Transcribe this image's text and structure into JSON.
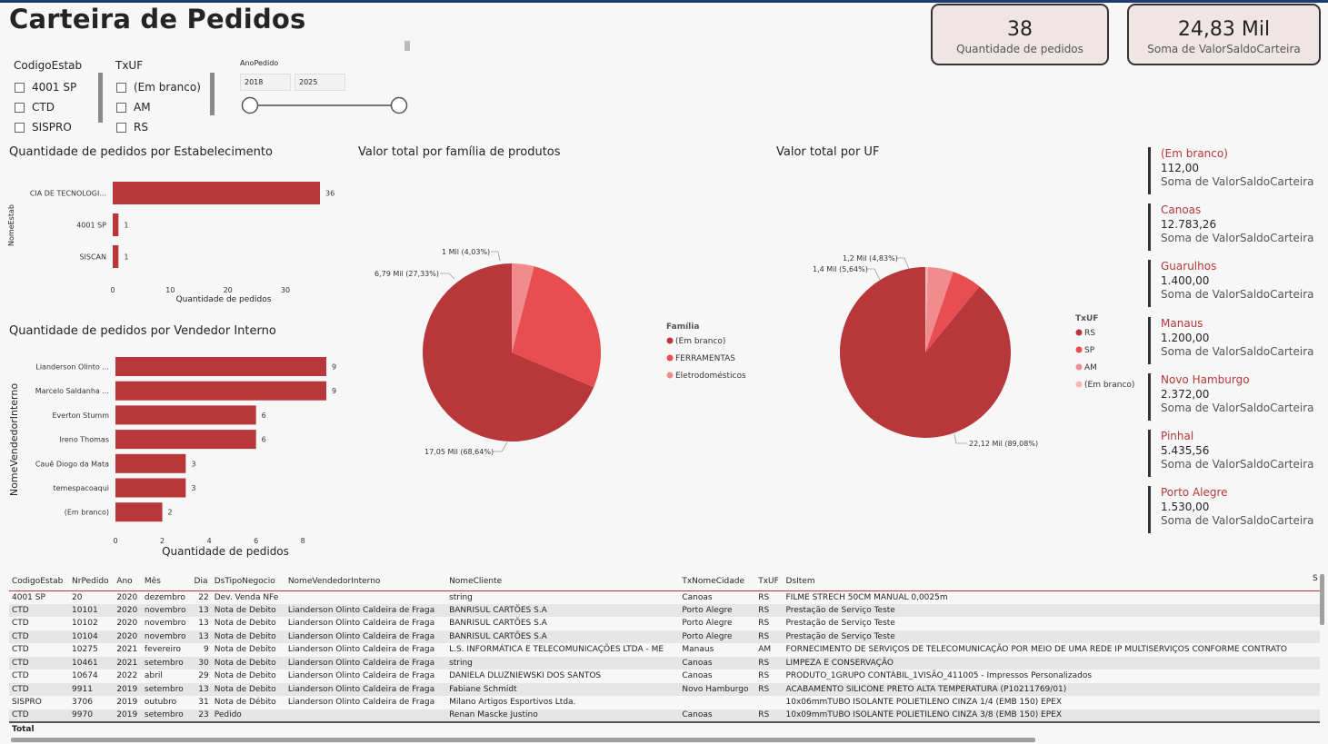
{
  "header": {
    "title": "Carteira de Pedidos"
  },
  "cards": [
    {
      "value": "38",
      "label": "Quantidade de pedidos"
    },
    {
      "value": "24,83 Mil",
      "label": "Soma de ValorSaldoCarteira"
    }
  ],
  "slicers": {
    "codigo": {
      "title": "CodigoEstab",
      "items": [
        "4001 SP",
        "CTD",
        "SISPRO"
      ]
    },
    "uf": {
      "title": "TxUF",
      "items": [
        "(Em branco)",
        "AM",
        "RS"
      ]
    },
    "ano": {
      "title": "AnoPedido",
      "from": "2018",
      "to": "2025"
    }
  },
  "colors": {
    "primary": "#b7373b",
    "secondary": "#e84e50",
    "tertiary": "#f08c8e",
    "quaternary": "#f5b8b9"
  },
  "chart_data": [
    {
      "type": "bar",
      "orientation": "horizontal",
      "title": "Quantidade de pedidos por Estabelecimento",
      "xlabel": "Quantidade de pedidos",
      "ylabel": "NomeEstab",
      "categories": [
        "CIA DE TECNOLOGI...",
        "4001 SP",
        "SISCAN"
      ],
      "values": [
        36,
        1,
        1
      ],
      "xticks": [
        "0",
        "10",
        "20",
        "30"
      ],
      "xlim": [
        0,
        36
      ]
    },
    {
      "type": "bar",
      "orientation": "horizontal",
      "title": "Quantidade de pedidos por Vendedor Interno",
      "xlabel": "Quantidade de pedidos",
      "ylabel": "NomeVendedorInterno",
      "categories": [
        "Lianderson Olinto ...",
        "Marcelo Saldanha ...",
        "Everton Stumm",
        "Ireno Thomas",
        "Cauê Diogo da Mata",
        "temespacoaqui",
        "(Em branco)"
      ],
      "values": [
        9,
        9,
        6,
        6,
        3,
        3,
        2
      ],
      "xticks": [
        "0",
        "2",
        "4",
        "6",
        "8"
      ],
      "xlim": [
        0,
        9
      ]
    },
    {
      "type": "pie",
      "title": "Valor total por família de produtos",
      "legend_title": "Família",
      "slices": [
        {
          "name": "(Em branco)",
          "value": 17.05,
          "label": "17,05 Mil (68,64%)"
        },
        {
          "name": "FERRAMENTAS",
          "value": 6.79,
          "label": "6,79 Mil (27,33%)"
        },
        {
          "name": "Eletrodomésticos",
          "value": 1,
          "label": "1 Mil (4,03%)"
        }
      ]
    },
    {
      "type": "pie",
      "title": "Valor total por UF",
      "legend_title": "TxUF",
      "slices": [
        {
          "name": "RS",
          "value": 22.12,
          "label": "22,12 Mil (89,08%)"
        },
        {
          "name": "SP",
          "value": 1.4,
          "label": "1,4 Mil (5,64%)"
        },
        {
          "name": "AM",
          "value": 1.2,
          "label": "1,2 Mil (4,83%)"
        },
        {
          "name": "(Em branco)",
          "value": 0.112,
          "label": ""
        }
      ]
    }
  ],
  "multirow": [
    {
      "cidade": "(Em branco)",
      "valor": "112,00",
      "label": "Soma de ValorSaldoCarteira"
    },
    {
      "cidade": "Canoas",
      "valor": "12.783,26",
      "label": "Soma de ValorSaldoCarteira"
    },
    {
      "cidade": "Guarulhos",
      "valor": "1.400,00",
      "label": "Soma de ValorSaldoCarteira"
    },
    {
      "cidade": "Manaus",
      "valor": "1.200,00",
      "label": "Soma de ValorSaldoCarteira"
    },
    {
      "cidade": "Novo Hamburgo",
      "valor": "2.372,00",
      "label": "Soma de ValorSaldoCarteira"
    },
    {
      "cidade": "Pinhal",
      "valor": "5.435,56",
      "label": "Soma de ValorSaldoCarteira"
    },
    {
      "cidade": "Porto Alegre",
      "valor": "1.530,00",
      "label": "Soma de ValorSaldoCarteira"
    }
  ],
  "table": {
    "columns": [
      "CodigoEstab",
      "NrPedido",
      "Ano",
      "Mês",
      "Dia",
      "DsTipoNegocio",
      "NomeVendedorInterno",
      "NomeCliente",
      "TxNomeCidade",
      "TxUF",
      "DsItem"
    ],
    "rows": [
      [
        "4001 SP",
        "20",
        "2020",
        "dezembro",
        "22",
        "Dev. Venda NFe",
        "",
        "string",
        "Canoas",
        "RS",
        "FILME STRECH 50CM MANUAL 0,0025m"
      ],
      [
        "CTD",
        "10101",
        "2020",
        "novembro",
        "13",
        "Nota de Debito",
        "Lianderson Olinto Caldeira de Fraga",
        "BANRISUL CARTÕES S.A",
        "Porto Alegre",
        "RS",
        "Prestação de Serviço Teste"
      ],
      [
        "CTD",
        "10102",
        "2020",
        "novembro",
        "13",
        "Nota de Debito",
        "Lianderson Olinto Caldeira de Fraga",
        "BANRISUL CARTÕES S.A",
        "Porto Alegre",
        "RS",
        "Prestação de Serviço Teste"
      ],
      [
        "CTD",
        "10104",
        "2020",
        "novembro",
        "13",
        "Nota de Debito",
        "Lianderson Olinto Caldeira de Fraga",
        "BANRISUL CARTÕES S.A",
        "Porto Alegre",
        "RS",
        "Prestação de Serviço Teste"
      ],
      [
        "CTD",
        "10275",
        "2021",
        "fevereiro",
        "9",
        "Nota de Debito",
        "Lianderson Olinto Caldeira de Fraga",
        "L.S. INFORMÁTICA E TELECOMUNICAÇÕES LTDA - ME",
        "Manaus",
        "AM",
        "FORNECIMENTO DE SERVIÇOS DE TELECOMUNICAÇÃO POR MEIO DE UMA REDE IP MULTISERVIÇOS CONFORME CONTRATO"
      ],
      [
        "CTD",
        "10461",
        "2021",
        "setembro",
        "30",
        "Nota de Debito",
        "Lianderson Olinto Caldeira de Fraga",
        "string",
        "Canoas",
        "RS",
        "LIMPEZA E CONSERVAÇÃO"
      ],
      [
        "CTD",
        "10674",
        "2022",
        "abril",
        "29",
        "Nota de Debito",
        "Lianderson Olinto Caldeira de Fraga",
        "DANIELA DLUZNIEWSKI DOS SANTOS",
        "Canoas",
        "RS",
        "PRODUTO_1GRUPO CONTÁBIL_1VISÃO_411005 - Impressos Personalizados"
      ],
      [
        "CTD",
        "9911",
        "2019",
        "setembro",
        "13",
        "Nota de Debito",
        "Lianderson Olinto Caldeira de Fraga",
        "Fabiane Schmidt",
        "Novo Hamburgo",
        "RS",
        "ACABAMENTO SILICONE PRETO ALTA TEMPERATURA (P10211769/01)"
      ],
      [
        "SISPRO",
        "3706",
        "2019",
        "outubro",
        "31",
        "Nota de Débito",
        "Lianderson Olinto Caldeira de Fraga",
        "Milano Artigos Esportivos Ltda.",
        "",
        "",
        "10x06mmTUBO ISOLANTE POLIETILENO CINZA 1/4 (EMB 150) EPEX"
      ],
      [
        "CTD",
        "9970",
        "2019",
        "setembro",
        "23",
        "Pedido",
        "",
        "Renan Mascke Justino",
        "Canoas",
        "RS",
        "10x09mmTUBO ISOLANTE POLIETILENO CINZA 3/8 (EMB 150) EPEX"
      ]
    ],
    "total_label": "Total"
  }
}
